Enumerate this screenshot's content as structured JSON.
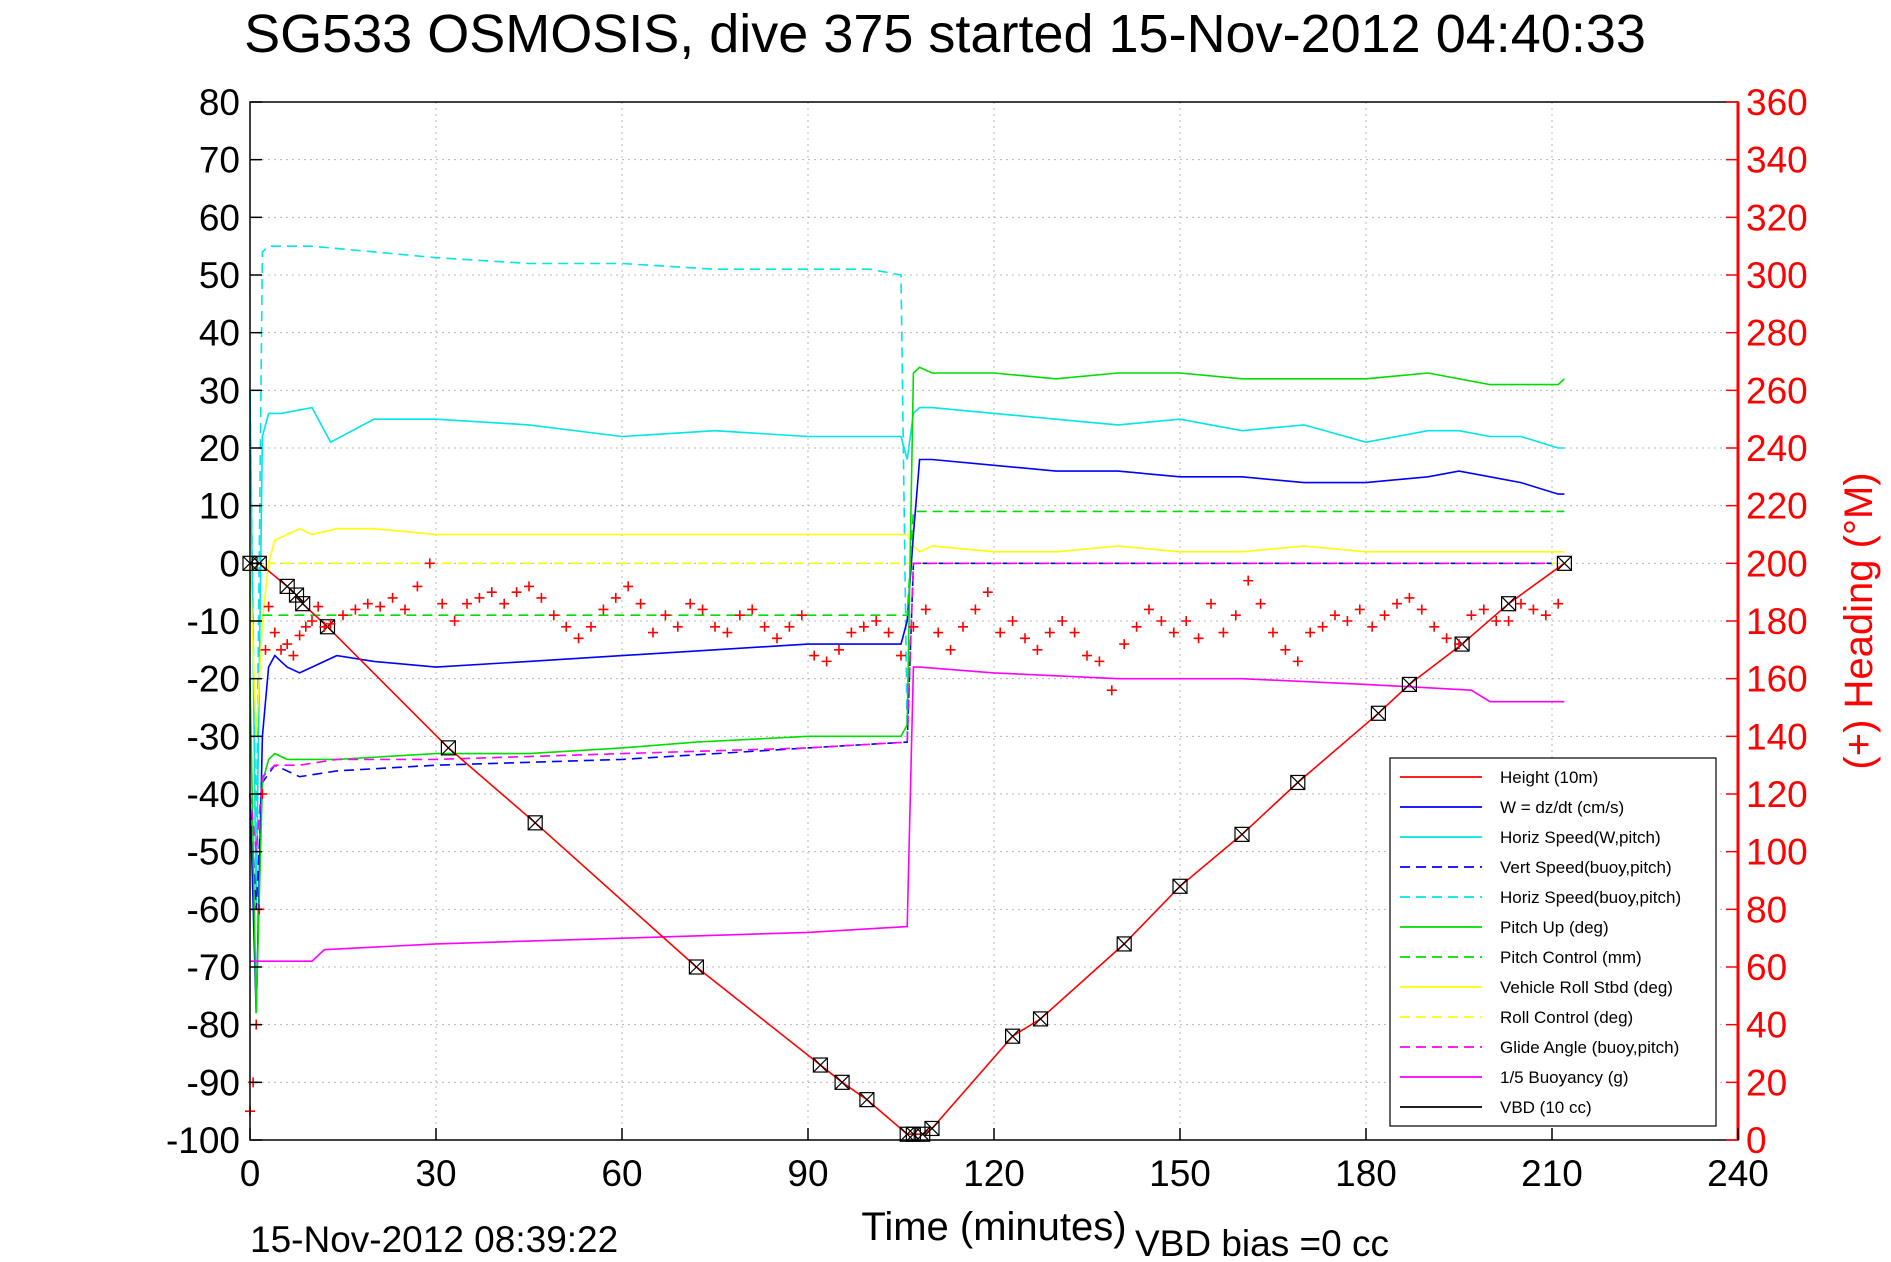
{
  "chart_data": {
    "type": "line",
    "title": "SG533 OSMOSIS, dive 375 started 15-Nov-2012 04:40:33",
    "xlabel": "Time (minutes)",
    "ylabel": "",
    "y2label": "(+) Heading (°M)",
    "xlim": [
      0,
      240
    ],
    "ylim": [
      -100,
      80
    ],
    "y2lim": [
      0,
      360
    ],
    "xticks": [
      0,
      30,
      60,
      90,
      120,
      150,
      180,
      210,
      240
    ],
    "yticks": [
      80,
      70,
      60,
      50,
      40,
      30,
      20,
      10,
      0,
      -10,
      -20,
      -30,
      -40,
      -50,
      -60,
      -70,
      -80,
      -90,
      -100
    ],
    "y2ticks": [
      360,
      340,
      320,
      300,
      280,
      260,
      240,
      220,
      200,
      180,
      160,
      140,
      120,
      100,
      80,
      60,
      40,
      20,
      0
    ],
    "grid": true,
    "legend_position": "bottom-right",
    "footer_left": "15-Nov-2012 08:39:22",
    "footer_right": "VBD bias =0 cc",
    "series": [
      {
        "name": "Height (10m)",
        "color": "#ff0000",
        "style": "solid",
        "marker": "square-x",
        "x": [
          0,
          1.5,
          6,
          7.5,
          8.5,
          12.5,
          32,
          46,
          72,
          92,
          95.5,
          99.5,
          106,
          107,
          108.5,
          110,
          123,
          127.5,
          141,
          150,
          160,
          169,
          182,
          187,
          195.5,
          203,
          212
        ],
        "y": [
          0,
          0,
          -4,
          -5.5,
          -7,
          -11,
          -32,
          -45,
          -70,
          -87,
          -90,
          -93,
          -99,
          -99,
          -99,
          -98,
          -82,
          -79,
          -66,
          -56,
          -47,
          -38,
          -26,
          -21,
          -14,
          -7,
          0
        ]
      },
      {
        "name": "W = dz/dt (cm/s)",
        "color": "#0000ff",
        "style": "solid",
        "x": [
          0,
          1,
          2,
          3,
          4,
          5,
          6,
          8,
          10,
          14,
          20,
          30,
          45,
          60,
          75,
          90,
          100,
          105,
          106,
          107,
          108,
          110,
          120,
          130,
          140,
          150,
          160,
          170,
          180,
          190,
          195,
          200,
          205,
          211,
          212
        ],
        "y": [
          -40,
          -78,
          -30,
          -18,
          -16,
          -17,
          -18,
          -19,
          -18,
          -16,
          -17,
          -18,
          -17,
          -16,
          -15,
          -14,
          -14,
          -14,
          -10,
          5,
          18,
          18,
          17,
          16,
          16,
          15,
          15,
          14,
          14,
          15,
          16,
          15,
          14,
          12,
          12
        ]
      },
      {
        "name": "Horiz Speed(W,pitch)",
        "color": "#00e5e5",
        "style": "solid",
        "x": [
          0,
          1,
          2,
          3,
          5,
          10,
          13,
          20,
          30,
          45,
          60,
          75,
          90,
          100,
          105,
          106,
          107,
          108,
          110,
          120,
          130,
          140,
          150,
          160,
          170,
          180,
          190,
          195,
          200,
          205,
          211,
          212
        ],
        "y": [
          30,
          -60,
          22,
          26,
          26,
          27,
          21,
          25,
          25,
          24,
          22,
          23,
          22,
          22,
          22,
          18,
          26,
          27,
          27,
          26,
          25,
          24,
          25,
          23,
          24,
          21,
          23,
          23,
          22,
          22,
          20,
          20
        ]
      },
      {
        "name": "Vert Speed(buoy,pitch)",
        "color": "#0000ff",
        "style": "dash",
        "x": [
          0,
          1,
          2,
          4,
          8,
          14,
          30,
          60,
          90,
          106,
          107,
          210
        ],
        "y": [
          -40,
          -60,
          -38,
          -35,
          -37,
          -36,
          -35,
          -34,
          -32,
          -31,
          0,
          0
        ]
      },
      {
        "name": "Horiz Speed(buoy,pitch)",
        "color": "#00e5e5",
        "style": "dash",
        "x": [
          0,
          1,
          2,
          3,
          10,
          20,
          30,
          45,
          60,
          75,
          90,
          100,
          105,
          106,
          107,
          210
        ],
        "y": [
          30,
          -50,
          54,
          55,
          55,
          54,
          53,
          52,
          52,
          51,
          51,
          51,
          50,
          -30,
          0,
          0
        ]
      },
      {
        "name": "Pitch Up (deg)",
        "color": "#00dd00",
        "style": "solid",
        "x": [
          0,
          1,
          2,
          3,
          4,
          6,
          10,
          14,
          30,
          45,
          60,
          72,
          90,
          100,
          105,
          106,
          107,
          108,
          110,
          120,
          130,
          140,
          150,
          160,
          170,
          180,
          190,
          200,
          205,
          211,
          212
        ],
        "y": [
          -20,
          -78,
          -38,
          -34,
          -33,
          -34,
          -34,
          -34,
          -33,
          -33,
          -32,
          -31,
          -30,
          -30,
          -30,
          -28,
          33,
          34,
          33,
          33,
          32,
          33,
          33,
          32,
          32,
          32,
          33,
          31,
          31,
          31,
          32
        ]
      },
      {
        "name": "Pitch Control (mm)",
        "color": "#00dd00",
        "style": "dash",
        "x": [
          2,
          106,
          107,
          212
        ],
        "y": [
          -9,
          -9,
          9,
          9
        ]
      },
      {
        "name": "Vehicle Roll Stbd (deg)",
        "color": "#ffff00",
        "style": "solid",
        "x": [
          0,
          1,
          2,
          3,
          4,
          6,
          8,
          10,
          14,
          20,
          30,
          45,
          60,
          75,
          90,
          100,
          105,
          106,
          107,
          108,
          110,
          120,
          130,
          140,
          150,
          160,
          170,
          180,
          190,
          200,
          205,
          211,
          212
        ],
        "y": [
          0,
          -30,
          -10,
          0,
          4,
          5,
          6,
          5,
          6,
          6,
          5,
          5,
          5,
          5,
          5,
          5,
          5,
          5,
          3,
          2,
          3,
          2,
          2,
          3,
          2,
          2,
          3,
          2,
          2,
          2,
          2,
          2,
          2
        ]
      },
      {
        "name": "Roll Control (deg)",
        "color": "#ffff00",
        "style": "dash",
        "x": [
          0,
          106,
          107,
          212
        ],
        "y": [
          0,
          0,
          0,
          0
        ]
      },
      {
        "name": "Glide Angle (buoy,pitch)",
        "color": "#ff00ff",
        "style": "dash",
        "x": [
          0,
          1,
          2,
          4,
          8,
          14,
          30,
          60,
          90,
          106,
          107,
          210
        ],
        "y": [
          -40,
          -50,
          -37,
          -35,
          -35,
          -34,
          -34,
          -33,
          -32,
          -31,
          0,
          0
        ]
      },
      {
        "name": "1/5 Buoyancy (g)",
        "color": "#ff00ff",
        "style": "solid",
        "x": [
          0,
          2,
          10,
          12,
          30,
          60,
          90,
          106,
          107,
          108,
          120,
          140,
          160,
          180,
          197,
          200,
          212
        ],
        "y": [
          -69,
          -69,
          -69,
          -67,
          -66,
          -65,
          -64,
          -63,
          -18,
          -18,
          -19,
          -20,
          -20,
          -21,
          -22,
          -24,
          -24
        ]
      },
      {
        "name": "VBD (10 cc)",
        "color": "#000000",
        "style": "solid",
        "x": [
          0,
          1,
          2,
          10,
          106,
          107,
          108,
          110,
          212
        ],
        "y": [
          40,
          -9,
          -10,
          -10,
          -10,
          0,
          8,
          10,
          10
        ]
      }
    ],
    "heading_series": {
      "name": "Heading",
      "color": "#ff0000",
      "marker": "+",
      "axis": "right",
      "x": [
        0,
        0.5,
        1,
        1.5,
        2,
        2.5,
        3,
        4,
        5,
        6,
        7,
        8,
        9,
        10,
        11,
        12,
        13,
        15,
        17,
        19,
        21,
        23,
        25,
        27,
        29,
        31,
        33,
        35,
        37,
        39,
        41,
        43,
        45,
        47,
        49,
        51,
        53,
        55,
        57,
        59,
        61,
        63,
        65,
        67,
        69,
        71,
        73,
        75,
        77,
        79,
        81,
        83,
        85,
        87,
        89,
        91,
        93,
        95,
        97,
        99,
        101,
        103,
        105,
        107,
        109,
        111,
        113,
        115,
        117,
        119,
        121,
        123,
        125,
        127,
        129,
        131,
        133,
        135,
        137,
        139,
        141,
        143,
        145,
        147,
        149,
        151,
        153,
        155,
        157,
        159,
        161,
        163,
        165,
        167,
        169,
        171,
        173,
        175,
        177,
        179,
        181,
        183,
        185,
        187,
        189,
        191,
        193,
        195,
        197,
        199,
        201,
        203,
        205,
        207,
        209,
        211
      ],
      "y": [
        10,
        20,
        40,
        80,
        120,
        170,
        185,
        176,
        170,
        172,
        168,
        175,
        178,
        180,
        185,
        178,
        179,
        182,
        184,
        186,
        185,
        188,
        184,
        192,
        200,
        186,
        180,
        186,
        188,
        190,
        186,
        190,
        192,
        188,
        182,
        178,
        174,
        178,
        184,
        188,
        192,
        186,
        176,
        182,
        178,
        186,
        184,
        178,
        176,
        182,
        184,
        178,
        174,
        178,
        182,
        168,
        166,
        170,
        176,
        178,
        180,
        176,
        168,
        178,
        184,
        176,
        170,
        178,
        184,
        190,
        176,
        180,
        174,
        170,
        176,
        180,
        176,
        168,
        166,
        156,
        172,
        178,
        184,
        180,
        176,
        180,
        174,
        186,
        176,
        182,
        194,
        186,
        176,
        170,
        166,
        176,
        178,
        182,
        180,
        184,
        178,
        182,
        186,
        188,
        184,
        178,
        174,
        172,
        182,
        184,
        180,
        180,
        186,
        184,
        182,
        186
      ]
    }
  }
}
